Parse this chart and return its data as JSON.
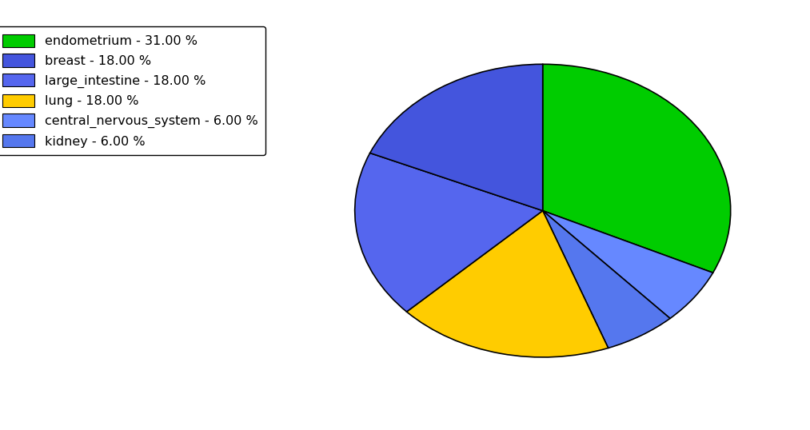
{
  "labels": [
    "endometrium",
    "central_nervous_system",
    "kidney",
    "lung",
    "large_intestine",
    "breast"
  ],
  "sizes": [
    31.0,
    6.0,
    6.0,
    18.0,
    18.0,
    18.0
  ],
  "colors": [
    "#00cc00",
    "#6688ff",
    "#5577ee",
    "#ffcc00",
    "#5566ee",
    "#4455dd"
  ],
  "legend_labels": [
    "endometrium - 31.00 %",
    "breast - 18.00 %",
    "large_intestine - 18.00 %",
    "lung - 18.00 %",
    "central_nervous_system - 6.00 %",
    "kidney - 6.00 %"
  ],
  "legend_colors": [
    "#00cc00",
    "#4455dd",
    "#5566ee",
    "#ffcc00",
    "#6688ff",
    "#5577ee"
  ],
  "background_color": "#ffffff",
  "figsize": [
    10.13,
    5.38
  ],
  "dpi": 100,
  "startangle": 90,
  "aspect_ratio": 0.78
}
